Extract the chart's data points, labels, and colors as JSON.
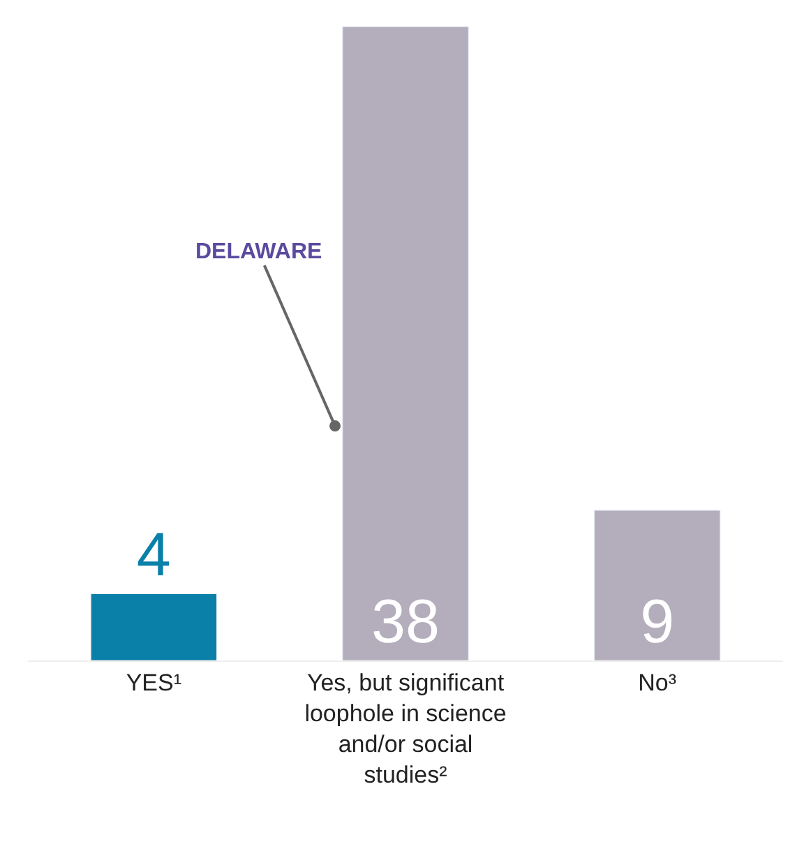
{
  "chart_data": {
    "type": "bar",
    "categories": [
      "YES¹",
      "Yes, but significant loophole in science and/or social studies²",
      "No³"
    ],
    "values": [
      4,
      38,
      9
    ],
    "colors": [
      "#0a7fa8",
      "#b3adbc",
      "#b3adbc"
    ],
    "data_labels": true,
    "annotations": [
      "DELAWARE"
    ],
    "legend": false
  }
}
